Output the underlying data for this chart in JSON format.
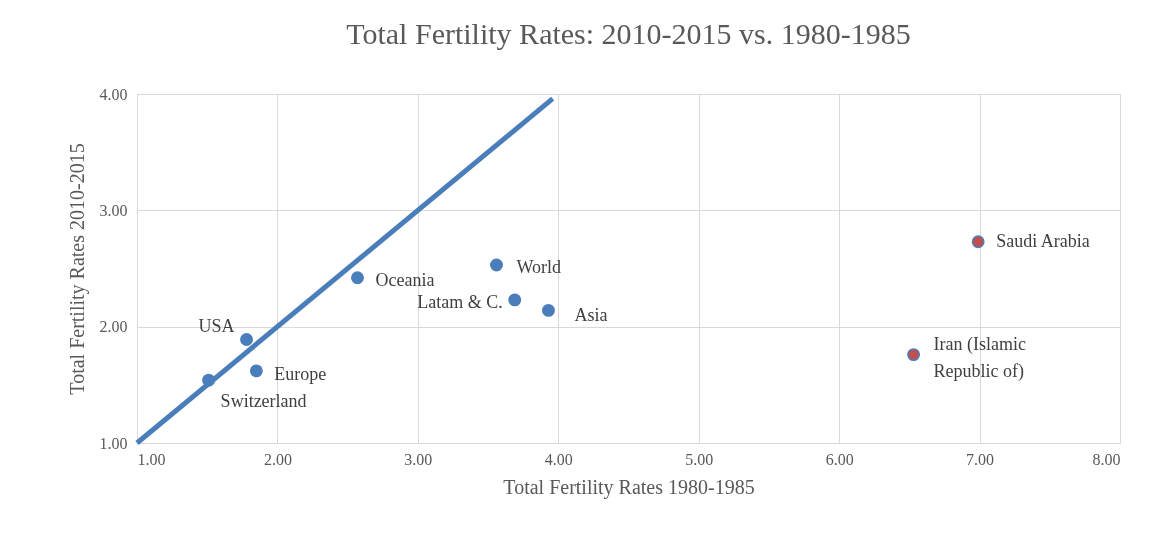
{
  "chart_data": {
    "type": "scatter",
    "title": "Total Fertility Rates: 2010-2015 vs. 1980-1985",
    "xlabel": "Total Fertility Rates 1980-1985",
    "ylabel": "Total Fertility Rates 2010-2015",
    "xlim": [
      1,
      8
    ],
    "ylim": [
      1,
      4
    ],
    "xticks": [
      {
        "value": 1,
        "label": "1.00"
      },
      {
        "value": 2,
        "label": "2.00"
      },
      {
        "value": 3,
        "label": "3.00"
      },
      {
        "value": 4,
        "label": "4.00"
      },
      {
        "value": 5,
        "label": "5.00"
      },
      {
        "value": 6,
        "label": "6.00"
      },
      {
        "value": 7,
        "label": "7.00"
      },
      {
        "value": 8,
        "label": "8.00"
      }
    ],
    "yticks": [
      {
        "value": 1,
        "label": "1.00"
      },
      {
        "value": 2,
        "label": "2.00"
      },
      {
        "value": 3,
        "label": "3.00"
      },
      {
        "value": 4,
        "label": "4.00"
      }
    ],
    "grid": true,
    "legend": false,
    "marker": "circle",
    "series": [
      {
        "type": "line",
        "color": "#4a7ebb",
        "marker": "none",
        "x": [
          1,
          3.96
        ],
        "values": [
          1,
          3.96
        ]
      },
      {
        "color": "#4a7ebb",
        "x": [
          2.57,
          3.56,
          3.69,
          3.93,
          1.78,
          1.85,
          1.51
        ],
        "values": [
          2.42,
          2.53,
          2.23,
          2.14,
          1.89,
          1.62,
          1.54
        ]
      },
      {
        "color": "#c0504d",
        "x": [
          6.99,
          6.53
        ],
        "values": [
          2.73,
          1.76
        ]
      }
    ],
    "annotations": [
      {
        "text": "Oceania",
        "x": 2.57,
        "y": 2.42
      },
      {
        "text": "World",
        "x": 3.56,
        "y": 2.53
      },
      {
        "text": "Latam & C.",
        "x": 3.69,
        "y": 2.23
      },
      {
        "text": "Asia",
        "x": 3.93,
        "y": 2.14
      },
      {
        "text": "USA",
        "x": 1.78,
        "y": 1.89
      },
      {
        "text": "Europe",
        "x": 1.85,
        "y": 1.62
      },
      {
        "text": "Switzerland",
        "x": 1.51,
        "y": 1.54
      },
      {
        "text": "Saudi Arabia",
        "x": 6.99,
        "y": 2.73
      },
      {
        "text": "Iran (Islamic\nRepublic of)",
        "x": 6.53,
        "y": 1.76
      }
    ]
  }
}
